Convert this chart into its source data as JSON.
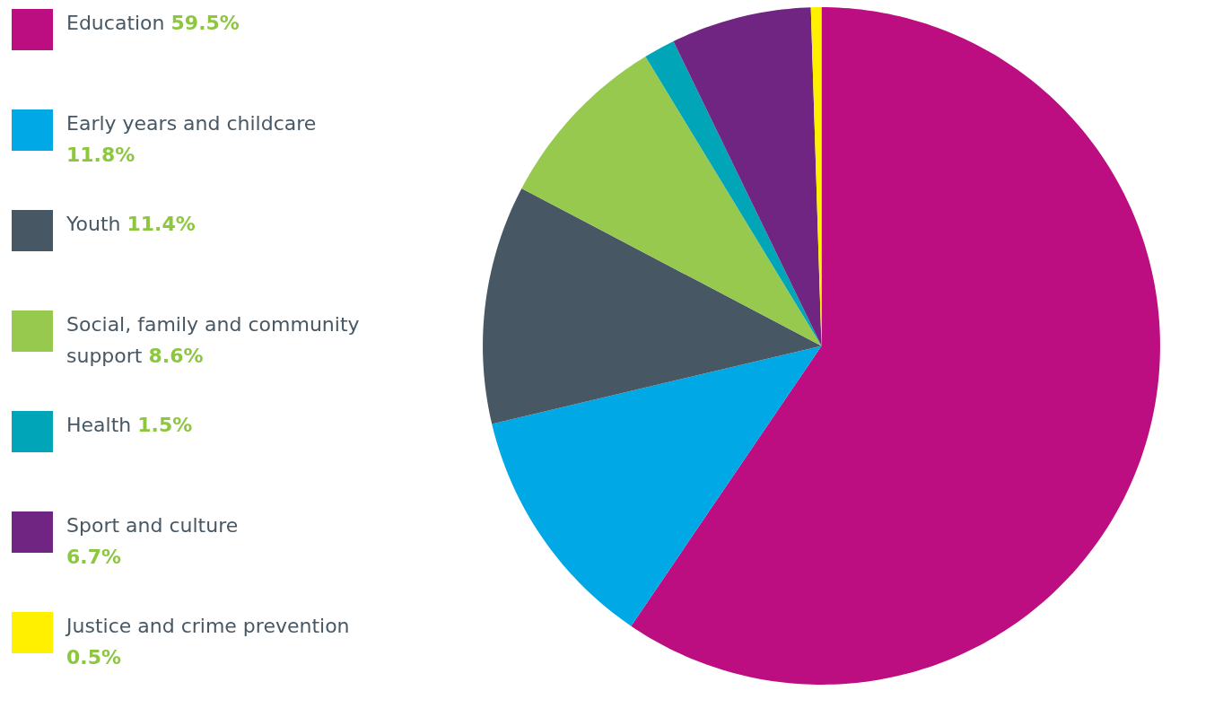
{
  "chart_data": {
    "type": "pie",
    "categories": [
      "Education",
      "Early years and childcare",
      "Youth",
      "Social, family and community support",
      "Health",
      "Sport and culture",
      "Justice and crime prevention"
    ],
    "values": [
      59.5,
      11.8,
      11.4,
      8.6,
      1.5,
      6.7,
      0.5
    ],
    "value_labels": [
      "59.5%",
      "11.8%",
      "11.4%",
      "8.6%",
      "1.5%",
      "6.7%",
      "0.5%"
    ],
    "colors": [
      "#bc0e80",
      "#00a9e6",
      "#475864",
      "#97c94e",
      "#00a6b8",
      "#702582",
      "#fff000"
    ],
    "legend": "left"
  }
}
